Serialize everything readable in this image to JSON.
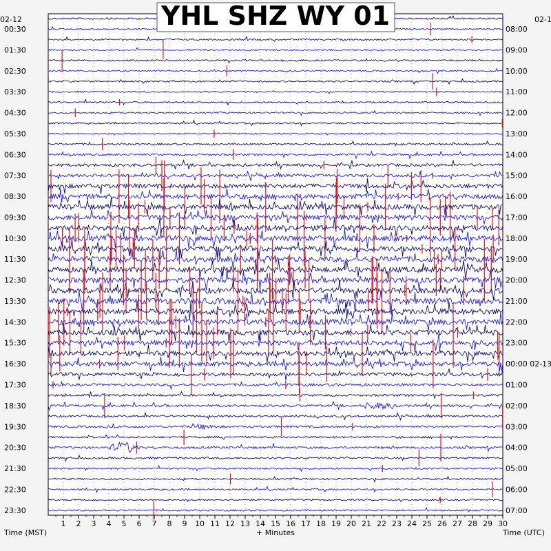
{
  "chart_data": {
    "type": "line",
    "title": "YHL SHZ WY 01",
    "xlabel": "+ Minutes",
    "left_axis_label": "Time (MST)",
    "right_axis_label": "Time (UTC)",
    "left_date_label": "02-12",
    "right_date_label_top": "02-1",
    "right_date_change_label": "02-13",
    "x_ticks": [
      "1",
      "2",
      "3",
      "4",
      "5",
      "6",
      "7",
      "8",
      "9",
      "10",
      "11",
      "12",
      "13",
      "14",
      "15",
      "16",
      "17",
      "18",
      "19",
      "20",
      "21",
      "22",
      "23",
      "24",
      "25",
      "26",
      "27",
      "28",
      "29",
      "30"
    ],
    "xlim": [
      0,
      30
    ],
    "row_count": 48,
    "left_row_labels": [
      "00:30",
      "01:30",
      "02:30",
      "03:30",
      "04:30",
      "05:30",
      "06:30",
      "07:30",
      "08:30",
      "09:30",
      "10:30",
      "11:30",
      "12:30",
      "13:30",
      "14:30",
      "15:30",
      "16:30",
      "17:30",
      "18:30",
      "19:30",
      "20:30",
      "21:30",
      "22:30",
      "23:30"
    ],
    "right_row_labels": [
      "08:00",
      "09:00",
      "10:00",
      "11:00",
      "12:00",
      "13:00",
      "14:00",
      "15:00",
      "16:00",
      "17:00",
      "18:00",
      "19:00",
      "20:00",
      "21:00",
      "22:00",
      "23:00",
      "00:00",
      "01:00",
      "02:00",
      "03:00",
      "04:00",
      "05:00",
      "06:00",
      "07:00"
    ],
    "colors": {
      "trace_a": "#0a0a6e",
      "trace_b": "#1a1aee",
      "clip": "#ee1111",
      "grid": "#777777",
      "title_bg": "#ffffff"
    },
    "activity_profile": [
      0.9,
      0.8,
      0.9,
      0.8,
      0.9,
      0.8,
      0.9,
      0.8,
      0.9,
      0.8,
      0.9,
      0.8,
      1.0,
      1.1,
      1.5,
      1.6,
      2.4,
      2.6,
      2.8,
      2.8,
      2.9,
      3.0,
      3.0,
      3.0,
      3.0,
      3.0,
      3.1,
      3.2,
      3.2,
      3.1,
      2.9,
      2.8,
      2.6,
      2.4,
      1.9,
      1.4,
      1.2,
      1.3,
      1.1,
      1.2,
      1.0,
      1.2,
      1.0,
      0.9,
      0.9,
      0.9,
      0.9,
      0.9
    ]
  }
}
